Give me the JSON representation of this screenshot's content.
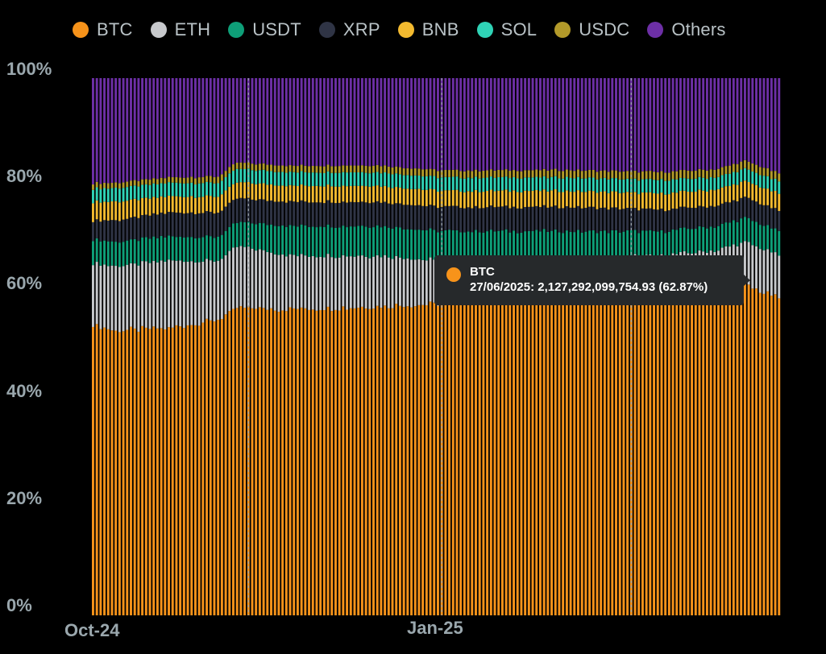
{
  "chart_data": {
    "type": "bar",
    "stacked": true,
    "normalized": true,
    "xlabel": "",
    "ylabel": "",
    "ylim": [
      0,
      100
    ],
    "y_ticks": [
      "100%",
      "80%",
      "60%",
      "40%",
      "20%",
      "0%"
    ],
    "x_tick_labels": [
      {
        "label": "Oct-24",
        "index": 0
      },
      {
        "label": "Jan-25",
        "index": 92
      }
    ],
    "legend": [
      {
        "name": "BTC",
        "color": "#f7931a"
      },
      {
        "name": "ETH",
        "color": "#c7c9cc"
      },
      {
        "name": "USDT",
        "color": "#0e9f78"
      },
      {
        "name": "XRP",
        "color": "#2f3445"
      },
      {
        "name": "BNB",
        "color": "#f3ba2f"
      },
      {
        "name": "SOL",
        "color": "#2fd3b6"
      },
      {
        "name": "USDC",
        "color": "#b39a2a"
      },
      {
        "name": "Others",
        "color": "#6d2fa6"
      }
    ],
    "bar_count": 182,
    "highlight_lines": [
      41,
      92,
      142
    ],
    "series_anchors": [
      {
        "name": "BTC",
        "points": [
          [
            0,
            54.0
          ],
          [
            6,
            53.0
          ],
          [
            20,
            53.5
          ],
          [
            33,
            55.0
          ],
          [
            38,
            57.5
          ],
          [
            52,
            57.0
          ],
          [
            75,
            57.5
          ],
          [
            92,
            58.0
          ],
          [
            125,
            59.0
          ],
          [
            150,
            59.0
          ],
          [
            165,
            60.0
          ],
          [
            172,
            61.5
          ],
          [
            181,
            59.0
          ]
        ]
      },
      {
        "name": "ETH",
        "points": [
          [
            0,
            11.5
          ],
          [
            6,
            12.0
          ],
          [
            20,
            12.5
          ],
          [
            33,
            11.0
          ],
          [
            38,
            11.5
          ],
          [
            52,
            10.0
          ],
          [
            75,
            9.5
          ],
          [
            92,
            8.0
          ],
          [
            125,
            7.5
          ],
          [
            150,
            8.0
          ],
          [
            165,
            8.0
          ],
          [
            172,
            8.0
          ],
          [
            181,
            8.0
          ]
        ]
      },
      {
        "name": "USDT",
        "points": [
          [
            0,
            4.5
          ],
          [
            6,
            4.5
          ],
          [
            20,
            4.5
          ],
          [
            33,
            4.5
          ],
          [
            38,
            4.5
          ],
          [
            52,
            5.5
          ],
          [
            75,
            5.5
          ],
          [
            92,
            5.5
          ],
          [
            125,
            5.0
          ],
          [
            150,
            4.5
          ],
          [
            165,
            4.5
          ],
          [
            172,
            4.5
          ],
          [
            181,
            4.5
          ]
        ]
      },
      {
        "name": "XRP",
        "points": [
          [
            0,
            3.5
          ],
          [
            6,
            4.0
          ],
          [
            20,
            4.5
          ],
          [
            33,
            4.5
          ],
          [
            38,
            4.5
          ],
          [
            52,
            4.5
          ],
          [
            75,
            4.5
          ],
          [
            92,
            4.5
          ],
          [
            125,
            4.5
          ],
          [
            150,
            4.0
          ],
          [
            165,
            3.8
          ],
          [
            172,
            3.8
          ],
          [
            181,
            3.8
          ]
        ]
      },
      {
        "name": "BNB",
        "points": [
          [
            0,
            3.5
          ],
          [
            6,
            3.5
          ],
          [
            20,
            3.0
          ],
          [
            33,
            3.0
          ],
          [
            38,
            3.0
          ],
          [
            52,
            3.0
          ],
          [
            75,
            3.0
          ],
          [
            92,
            3.0
          ],
          [
            125,
            3.0
          ],
          [
            150,
            3.0
          ],
          [
            165,
            3.0
          ],
          [
            172,
            3.0
          ],
          [
            181,
            3.2
          ]
        ]
      },
      {
        "name": "SOL",
        "points": [
          [
            0,
            2.5
          ],
          [
            6,
            2.5
          ],
          [
            20,
            2.5
          ],
          [
            33,
            2.5
          ],
          [
            38,
            2.5
          ],
          [
            52,
            2.5
          ],
          [
            75,
            2.5
          ],
          [
            92,
            2.5
          ],
          [
            125,
            2.5
          ],
          [
            150,
            2.5
          ],
          [
            165,
            2.3
          ],
          [
            172,
            2.3
          ],
          [
            181,
            2.3
          ]
        ]
      },
      {
        "name": "USDC",
        "points": [
          [
            0,
            1.0
          ],
          [
            6,
            1.0
          ],
          [
            20,
            1.0
          ],
          [
            33,
            1.2
          ],
          [
            38,
            1.2
          ],
          [
            52,
            1.2
          ],
          [
            75,
            1.3
          ],
          [
            92,
            1.3
          ],
          [
            125,
            1.4
          ],
          [
            150,
            1.5
          ],
          [
            165,
            1.5
          ],
          [
            172,
            1.5
          ],
          [
            181,
            1.5
          ]
        ]
      },
      {
        "name": "Others",
        "points": [
          [
            0,
            19.5
          ],
          [
            6,
            19.5
          ],
          [
            20,
            18.5
          ],
          [
            33,
            18.3
          ],
          [
            38,
            15.8
          ],
          [
            52,
            16.3
          ],
          [
            75,
            16.2
          ],
          [
            92,
            17.2
          ],
          [
            125,
            17.1
          ],
          [
            150,
            17.5
          ],
          [
            165,
            16.9
          ],
          [
            172,
            15.4
          ],
          [
            181,
            17.7
          ]
        ]
      }
    ],
    "tooltip": {
      "series": "BTC",
      "text": "27/06/2025: 2,127,292,099,754.93 (62.87%)",
      "color": "#f7931a"
    }
  }
}
